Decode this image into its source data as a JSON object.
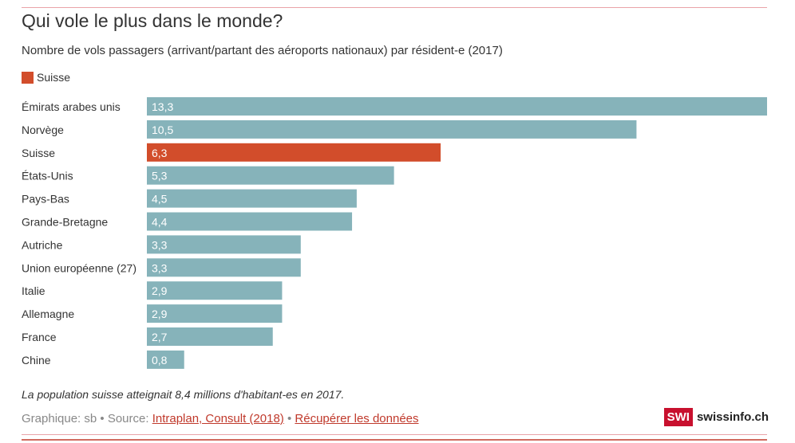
{
  "header": {
    "title": "Qui vole le plus dans le monde?",
    "subtitle": "Nombre de vols passagers (arrivant/partant des aéroports nationaux) par résident-e (2017)"
  },
  "legend": {
    "label": "Suisse",
    "color": "#d24d2b"
  },
  "colors": {
    "default_bar": "#86b3ba",
    "highlight_bar": "#d24d2b",
    "label_text": "#ffffff"
  },
  "chart_data": {
    "type": "bar",
    "orientation": "horizontal",
    "title": "Qui vole le plus dans le monde?",
    "xlabel": "",
    "ylabel": "",
    "xlim": [
      0,
      13.3
    ],
    "highlight": "Suisse",
    "categories": [
      "Émirats arabes unis",
      "Norvège",
      "Suisse",
      "États-Unis",
      "Pays-Bas",
      "Grande-Bretagne",
      "Autriche",
      "Union européenne (27)",
      "Italie",
      "Allemagne",
      "France",
      "Chine"
    ],
    "values": [
      13.3,
      10.5,
      6.3,
      5.3,
      4.5,
      4.4,
      3.3,
      3.3,
      2.9,
      2.9,
      2.7,
      0.8
    ],
    "value_labels": [
      "13,3",
      "10,5",
      "6,3",
      "5,3",
      "4,5",
      "4,4",
      "3,3",
      "3,3",
      "2,9",
      "2,9",
      "2,7",
      "0,8"
    ]
  },
  "footer": {
    "note": "La population suisse atteignait 8,4 millions d'habitant-es en 2017.",
    "credit_prefix": "Graphique: sb • Source:",
    "source_link": "Intraplan, Consult (2018)",
    "separator": "•",
    "data_link": "Récupérer les données",
    "brand_badge": "SWI",
    "brand_name": "swissinfo.ch"
  }
}
